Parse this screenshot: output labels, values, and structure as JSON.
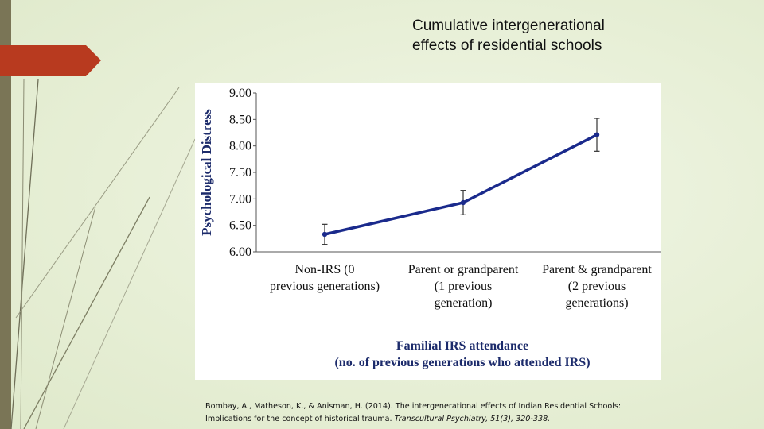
{
  "slide": {
    "title_lines": [
      "Cumulative intergenerational",
      "effects of residential schools"
    ],
    "citation": {
      "part1": "Bombay, A., Matheson, K., & Anisman, H. (2014). The intergenerational effects of Indian Residential Schools:",
      "part2": "Implications for the concept of historical trauma.",
      "journal": "Transcultural Psychiatry, 51(3), 320-338."
    },
    "colors": {
      "accent_arrow": "#b83a1f",
      "left_bar": "#7a7556",
      "line": "#1a2a8c"
    }
  },
  "chart_data": {
    "type": "line",
    "ylabel": "Psychological Distress",
    "xlabel_lines": [
      "Familial  IRS attendance",
      "(no. of previous generations who attended IRS)"
    ],
    "categories": [
      [
        "Non-IRS       (0",
        "previous generations)"
      ],
      [
        "Parent or grandparent",
        "(1 previous",
        "generation)"
      ],
      [
        "Parent & grandparent",
        "(2 previous",
        "generations)"
      ]
    ],
    "values": [
      6.33,
      6.93,
      8.21
    ],
    "error": [
      0.19,
      0.23,
      0.31
    ],
    "ylim": [
      6.0,
      9.0
    ],
    "yticks": [
      "6.00",
      "6.50",
      "7.00",
      "7.50",
      "8.00",
      "8.50",
      "9.00"
    ],
    "grid": false,
    "legend": "none"
  }
}
